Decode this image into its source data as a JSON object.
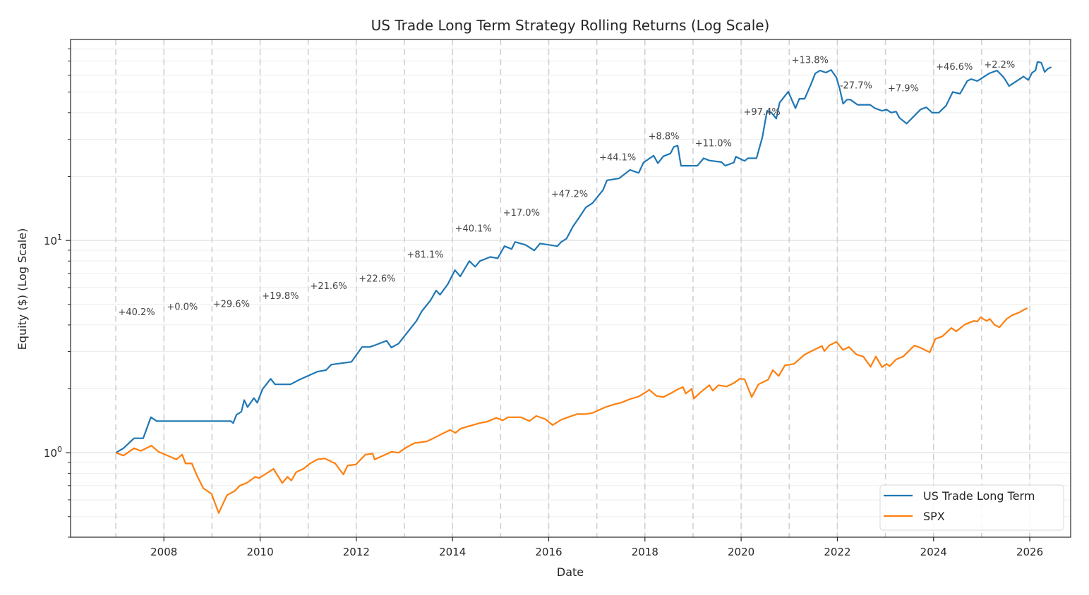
{
  "chart_data": {
    "type": "line",
    "title": "US Trade Long Term Strategy Rolling Returns (Log Scale)",
    "xlabel": "Date",
    "ylabel": "Equity ($) (Log Scale)",
    "yscale": "log",
    "xlim": [
      2006.06,
      2026.85
    ],
    "ylim": [
      0.4,
      88.5
    ],
    "grid": true,
    "legend_position": "bottom-right",
    "x_ticks": [
      {
        "value": 2008,
        "label": "2008"
      },
      {
        "value": 2010,
        "label": "2010"
      },
      {
        "value": 2012,
        "label": "2012"
      },
      {
        "value": 2014,
        "label": "2014"
      },
      {
        "value": 2016,
        "label": "2016"
      },
      {
        "value": 2018,
        "label": "2018"
      },
      {
        "value": 2020,
        "label": "2020"
      },
      {
        "value": 2022,
        "label": "2022"
      },
      {
        "value": 2024,
        "label": "2024"
      },
      {
        "value": 2026,
        "label": "2026"
      }
    ],
    "y_ticks": [
      {
        "value": 1,
        "base": "10",
        "exp": "0"
      },
      {
        "value": 10,
        "base": "10",
        "exp": "1"
      }
    ],
    "year_boundaries": [
      2007,
      2008,
      2009,
      2010,
      2011,
      2012,
      2013,
      2014,
      2015,
      2016,
      2017,
      2018,
      2019,
      2020,
      2021,
      2022,
      2023,
      2024,
      2025,
      2026
    ],
    "series": [
      {
        "name": "US Trade Long Term",
        "color": "#1f77b4",
        "points": [
          [
            2007.0,
            1.0
          ],
          [
            2007.16,
            1.05
          ],
          [
            2007.38,
            1.17
          ],
          [
            2007.57,
            1.17
          ],
          [
            2007.73,
            1.47
          ],
          [
            2007.85,
            1.41
          ],
          [
            2008.41,
            1.41
          ],
          [
            2009.39,
            1.41
          ],
          [
            2009.44,
            1.38
          ],
          [
            2009.51,
            1.51
          ],
          [
            2009.61,
            1.56
          ],
          [
            2009.67,
            1.77
          ],
          [
            2009.74,
            1.64
          ],
          [
            2009.87,
            1.81
          ],
          [
            2009.94,
            1.72
          ],
          [
            2010.05,
            1.99
          ],
          [
            2010.22,
            2.23
          ],
          [
            2010.31,
            2.1
          ],
          [
            2010.63,
            2.1
          ],
          [
            2010.82,
            2.21
          ],
          [
            2011.19,
            2.41
          ],
          [
            2011.37,
            2.45
          ],
          [
            2011.48,
            2.6
          ],
          [
            2011.9,
            2.68
          ],
          [
            2012.12,
            3.15
          ],
          [
            2012.28,
            3.15
          ],
          [
            2012.37,
            3.2
          ],
          [
            2012.63,
            3.37
          ],
          [
            2012.73,
            3.13
          ],
          [
            2012.88,
            3.27
          ],
          [
            2012.98,
            3.5
          ],
          [
            2013.25,
            4.18
          ],
          [
            2013.36,
            4.64
          ],
          [
            2013.54,
            5.21
          ],
          [
            2013.66,
            5.81
          ],
          [
            2013.74,
            5.55
          ],
          [
            2013.9,
            6.22
          ],
          [
            2014.05,
            7.25
          ],
          [
            2014.16,
            6.77
          ],
          [
            2014.35,
            8.0
          ],
          [
            2014.47,
            7.52
          ],
          [
            2014.57,
            8.0
          ],
          [
            2014.79,
            8.37
          ],
          [
            2014.94,
            8.24
          ],
          [
            2015.08,
            9.4
          ],
          [
            2015.23,
            9.12
          ],
          [
            2015.3,
            9.84
          ],
          [
            2015.52,
            9.53
          ],
          [
            2015.7,
            8.97
          ],
          [
            2015.82,
            9.68
          ],
          [
            2016.18,
            9.4
          ],
          [
            2016.26,
            9.84
          ],
          [
            2016.37,
            10.2
          ],
          [
            2016.5,
            11.6
          ],
          [
            2016.65,
            13.0
          ],
          [
            2016.77,
            14.3
          ],
          [
            2016.91,
            15.0
          ],
          [
            2017.13,
            17.3
          ],
          [
            2017.21,
            19.2
          ],
          [
            2017.46,
            19.6
          ],
          [
            2017.69,
            21.5
          ],
          [
            2017.87,
            20.8
          ],
          [
            2017.97,
            23.3
          ],
          [
            2018.18,
            25.1
          ],
          [
            2018.27,
            23.1
          ],
          [
            2018.38,
            24.9
          ],
          [
            2018.53,
            25.7
          ],
          [
            2018.6,
            27.6
          ],
          [
            2018.68,
            28.0
          ],
          [
            2018.75,
            22.5
          ],
          [
            2019.09,
            22.5
          ],
          [
            2019.22,
            24.4
          ],
          [
            2019.34,
            23.8
          ],
          [
            2019.59,
            23.4
          ],
          [
            2019.67,
            22.5
          ],
          [
            2019.85,
            23.3
          ],
          [
            2019.89,
            24.8
          ],
          [
            2020.07,
            23.7
          ],
          [
            2020.14,
            24.4
          ],
          [
            2020.32,
            24.4
          ],
          [
            2020.44,
            30.6
          ],
          [
            2020.54,
            40.8
          ],
          [
            2020.63,
            40.0
          ],
          [
            2020.73,
            37.5
          ],
          [
            2020.8,
            44.6
          ],
          [
            2020.98,
            50.2
          ],
          [
            2021.13,
            42.0
          ],
          [
            2021.21,
            46.5
          ],
          [
            2021.32,
            46.5
          ],
          [
            2021.46,
            55.0
          ],
          [
            2021.54,
            61.2
          ],
          [
            2021.64,
            63.2
          ],
          [
            2021.76,
            61.8
          ],
          [
            2021.87,
            63.6
          ],
          [
            2021.98,
            58.6
          ],
          [
            2022.05,
            51.8
          ],
          [
            2022.12,
            44.1
          ],
          [
            2022.2,
            46.1
          ],
          [
            2022.27,
            46.1
          ],
          [
            2022.42,
            43.6
          ],
          [
            2022.68,
            43.6
          ],
          [
            2022.78,
            42.0
          ],
          [
            2022.93,
            40.8
          ],
          [
            2023.02,
            41.4
          ],
          [
            2023.12,
            40.0
          ],
          [
            2023.22,
            40.5
          ],
          [
            2023.29,
            37.8
          ],
          [
            2023.44,
            35.5
          ],
          [
            2023.73,
            41.4
          ],
          [
            2023.85,
            42.4
          ],
          [
            2023.97,
            40.0
          ],
          [
            2024.11,
            40.0
          ],
          [
            2024.26,
            43.2
          ],
          [
            2024.4,
            50.1
          ],
          [
            2024.55,
            49.1
          ],
          [
            2024.7,
            56.4
          ],
          [
            2024.78,
            57.6
          ],
          [
            2024.91,
            56.4
          ],
          [
            2025.16,
            61.3
          ],
          [
            2025.32,
            63.2
          ],
          [
            2025.46,
            58.6
          ],
          [
            2025.57,
            53.4
          ],
          [
            2025.87,
            59.2
          ],
          [
            2025.97,
            57.0
          ],
          [
            2026.05,
            61.8
          ],
          [
            2026.12,
            63.2
          ],
          [
            2026.16,
            69.4
          ],
          [
            2026.24,
            68.8
          ],
          [
            2026.31,
            62.2
          ],
          [
            2026.38,
            64.6
          ],
          [
            2026.45,
            65.6
          ]
        ]
      },
      {
        "name": "SPX",
        "color": "#ff7f0e",
        "points": [
          [
            2007.0,
            1.0
          ],
          [
            2007.16,
            0.97
          ],
          [
            2007.38,
            1.05
          ],
          [
            2007.52,
            1.02
          ],
          [
            2007.74,
            1.08
          ],
          [
            2007.89,
            1.01
          ],
          [
            2008.12,
            0.96
          ],
          [
            2008.26,
            0.93
          ],
          [
            2008.38,
            0.98
          ],
          [
            2008.45,
            0.89
          ],
          [
            2008.58,
            0.89
          ],
          [
            2008.7,
            0.77
          ],
          [
            2008.82,
            0.68
          ],
          [
            2008.99,
            0.64
          ],
          [
            2009.14,
            0.52
          ],
          [
            2009.31,
            0.63
          ],
          [
            2009.47,
            0.66
          ],
          [
            2009.58,
            0.7
          ],
          [
            2009.72,
            0.72
          ],
          [
            2009.9,
            0.77
          ],
          [
            2009.98,
            0.76
          ],
          [
            2010.1,
            0.79
          ],
          [
            2010.28,
            0.84
          ],
          [
            2010.46,
            0.72
          ],
          [
            2010.57,
            0.77
          ],
          [
            2010.65,
            0.74
          ],
          [
            2010.75,
            0.81
          ],
          [
            2010.9,
            0.84
          ],
          [
            2011.04,
            0.89
          ],
          [
            2011.19,
            0.93
          ],
          [
            2011.34,
            0.94
          ],
          [
            2011.56,
            0.89
          ],
          [
            2011.73,
            0.79
          ],
          [
            2011.82,
            0.87
          ],
          [
            2011.99,
            0.88
          ],
          [
            2012.19,
            0.98
          ],
          [
            2012.34,
            0.99
          ],
          [
            2012.38,
            0.93
          ],
          [
            2012.56,
            0.97
          ],
          [
            2012.73,
            1.01
          ],
          [
            2012.88,
            1.0
          ],
          [
            2013.04,
            1.06
          ],
          [
            2013.21,
            1.11
          ],
          [
            2013.46,
            1.13
          ],
          [
            2013.57,
            1.16
          ],
          [
            2013.76,
            1.22
          ],
          [
            2013.95,
            1.28
          ],
          [
            2014.06,
            1.24
          ],
          [
            2014.17,
            1.3
          ],
          [
            2014.32,
            1.33
          ],
          [
            2014.57,
            1.38
          ],
          [
            2014.72,
            1.4
          ],
          [
            2014.91,
            1.46
          ],
          [
            2015.04,
            1.42
          ],
          [
            2015.16,
            1.47
          ],
          [
            2015.42,
            1.47
          ],
          [
            2015.6,
            1.41
          ],
          [
            2015.74,
            1.49
          ],
          [
            2015.93,
            1.44
          ],
          [
            2016.08,
            1.35
          ],
          [
            2016.26,
            1.43
          ],
          [
            2016.4,
            1.47
          ],
          [
            2016.59,
            1.52
          ],
          [
            2016.77,
            1.52
          ],
          [
            2016.91,
            1.54
          ],
          [
            2017.18,
            1.64
          ],
          [
            2017.36,
            1.69
          ],
          [
            2017.5,
            1.72
          ],
          [
            2017.69,
            1.79
          ],
          [
            2017.87,
            1.84
          ],
          [
            2018.02,
            1.93
          ],
          [
            2018.09,
            1.98
          ],
          [
            2018.24,
            1.85
          ],
          [
            2018.38,
            1.83
          ],
          [
            2018.53,
            1.9
          ],
          [
            2018.68,
            1.99
          ],
          [
            2018.79,
            2.04
          ],
          [
            2018.85,
            1.9
          ],
          [
            2018.97,
            2.0
          ],
          [
            2019.02,
            1.8
          ],
          [
            2019.16,
            1.93
          ],
          [
            2019.34,
            2.08
          ],
          [
            2019.41,
            1.96
          ],
          [
            2019.53,
            2.08
          ],
          [
            2019.7,
            2.05
          ],
          [
            2019.85,
            2.13
          ],
          [
            2019.97,
            2.23
          ],
          [
            2020.07,
            2.22
          ],
          [
            2020.22,
            1.83
          ],
          [
            2020.36,
            2.1
          ],
          [
            2020.56,
            2.21
          ],
          [
            2020.66,
            2.45
          ],
          [
            2020.78,
            2.3
          ],
          [
            2020.91,
            2.58
          ],
          [
            2021.1,
            2.62
          ],
          [
            2021.32,
            2.9
          ],
          [
            2021.46,
            3.01
          ],
          [
            2021.68,
            3.18
          ],
          [
            2021.73,
            3.01
          ],
          [
            2021.83,
            3.2
          ],
          [
            2021.98,
            3.33
          ],
          [
            2022.12,
            3.05
          ],
          [
            2022.24,
            3.15
          ],
          [
            2022.4,
            2.9
          ],
          [
            2022.54,
            2.84
          ],
          [
            2022.69,
            2.54
          ],
          [
            2022.8,
            2.84
          ],
          [
            2022.93,
            2.53
          ],
          [
            2023.02,
            2.62
          ],
          [
            2023.09,
            2.56
          ],
          [
            2023.22,
            2.75
          ],
          [
            2023.37,
            2.84
          ],
          [
            2023.6,
            3.2
          ],
          [
            2023.72,
            3.13
          ],
          [
            2023.92,
            2.97
          ],
          [
            2024.04,
            3.44
          ],
          [
            2024.18,
            3.53
          ],
          [
            2024.37,
            3.87
          ],
          [
            2024.47,
            3.73
          ],
          [
            2024.65,
            4.02
          ],
          [
            2024.84,
            4.18
          ],
          [
            2024.91,
            4.15
          ],
          [
            2024.98,
            4.35
          ],
          [
            2025.1,
            4.18
          ],
          [
            2025.17,
            4.27
          ],
          [
            2025.27,
            4.0
          ],
          [
            2025.37,
            3.9
          ],
          [
            2025.52,
            4.27
          ],
          [
            2025.63,
            4.44
          ],
          [
            2025.78,
            4.58
          ],
          [
            2025.88,
            4.72
          ],
          [
            2025.95,
            4.8
          ]
        ]
      }
    ],
    "annotations": [
      {
        "text": "+40.2%",
        "x": 2007.05,
        "y": 4.45
      },
      {
        "text": "+0.0%",
        "x": 2008.06,
        "y": 4.72
      },
      {
        "text": "+29.6%",
        "x": 2009.02,
        "y": 4.85
      },
      {
        "text": "+19.8%",
        "x": 2010.04,
        "y": 5.3
      },
      {
        "text": "+21.6%",
        "x": 2011.04,
        "y": 5.9
      },
      {
        "text": "+22.6%",
        "x": 2012.05,
        "y": 6.4
      },
      {
        "text": "+81.1%",
        "x": 2013.05,
        "y": 8.3
      },
      {
        "text": "+40.1%",
        "x": 2014.05,
        "y": 11.0
      },
      {
        "text": "+17.0%",
        "x": 2015.05,
        "y": 13.1
      },
      {
        "text": "+47.2%",
        "x": 2016.05,
        "y": 16.0
      },
      {
        "text": "+44.1%",
        "x": 2017.05,
        "y": 23.8
      },
      {
        "text": "+8.8%",
        "x": 2018.07,
        "y": 30.0
      },
      {
        "text": "+11.0%",
        "x": 2019.04,
        "y": 27.8
      },
      {
        "text": "+97.4%",
        "x": 2020.05,
        "y": 39.0
      },
      {
        "text": "+13.8%",
        "x": 2021.05,
        "y": 68.5
      },
      {
        "text": "-27.7%",
        "x": 2022.05,
        "y": 52.0
      },
      {
        "text": "+7.9%",
        "x": 2023.05,
        "y": 50.5
      },
      {
        "text": "+46.6%",
        "x": 2024.05,
        "y": 63.8
      },
      {
        "text": "+2.2%",
        "x": 2025.05,
        "y": 65.2
      }
    ]
  }
}
